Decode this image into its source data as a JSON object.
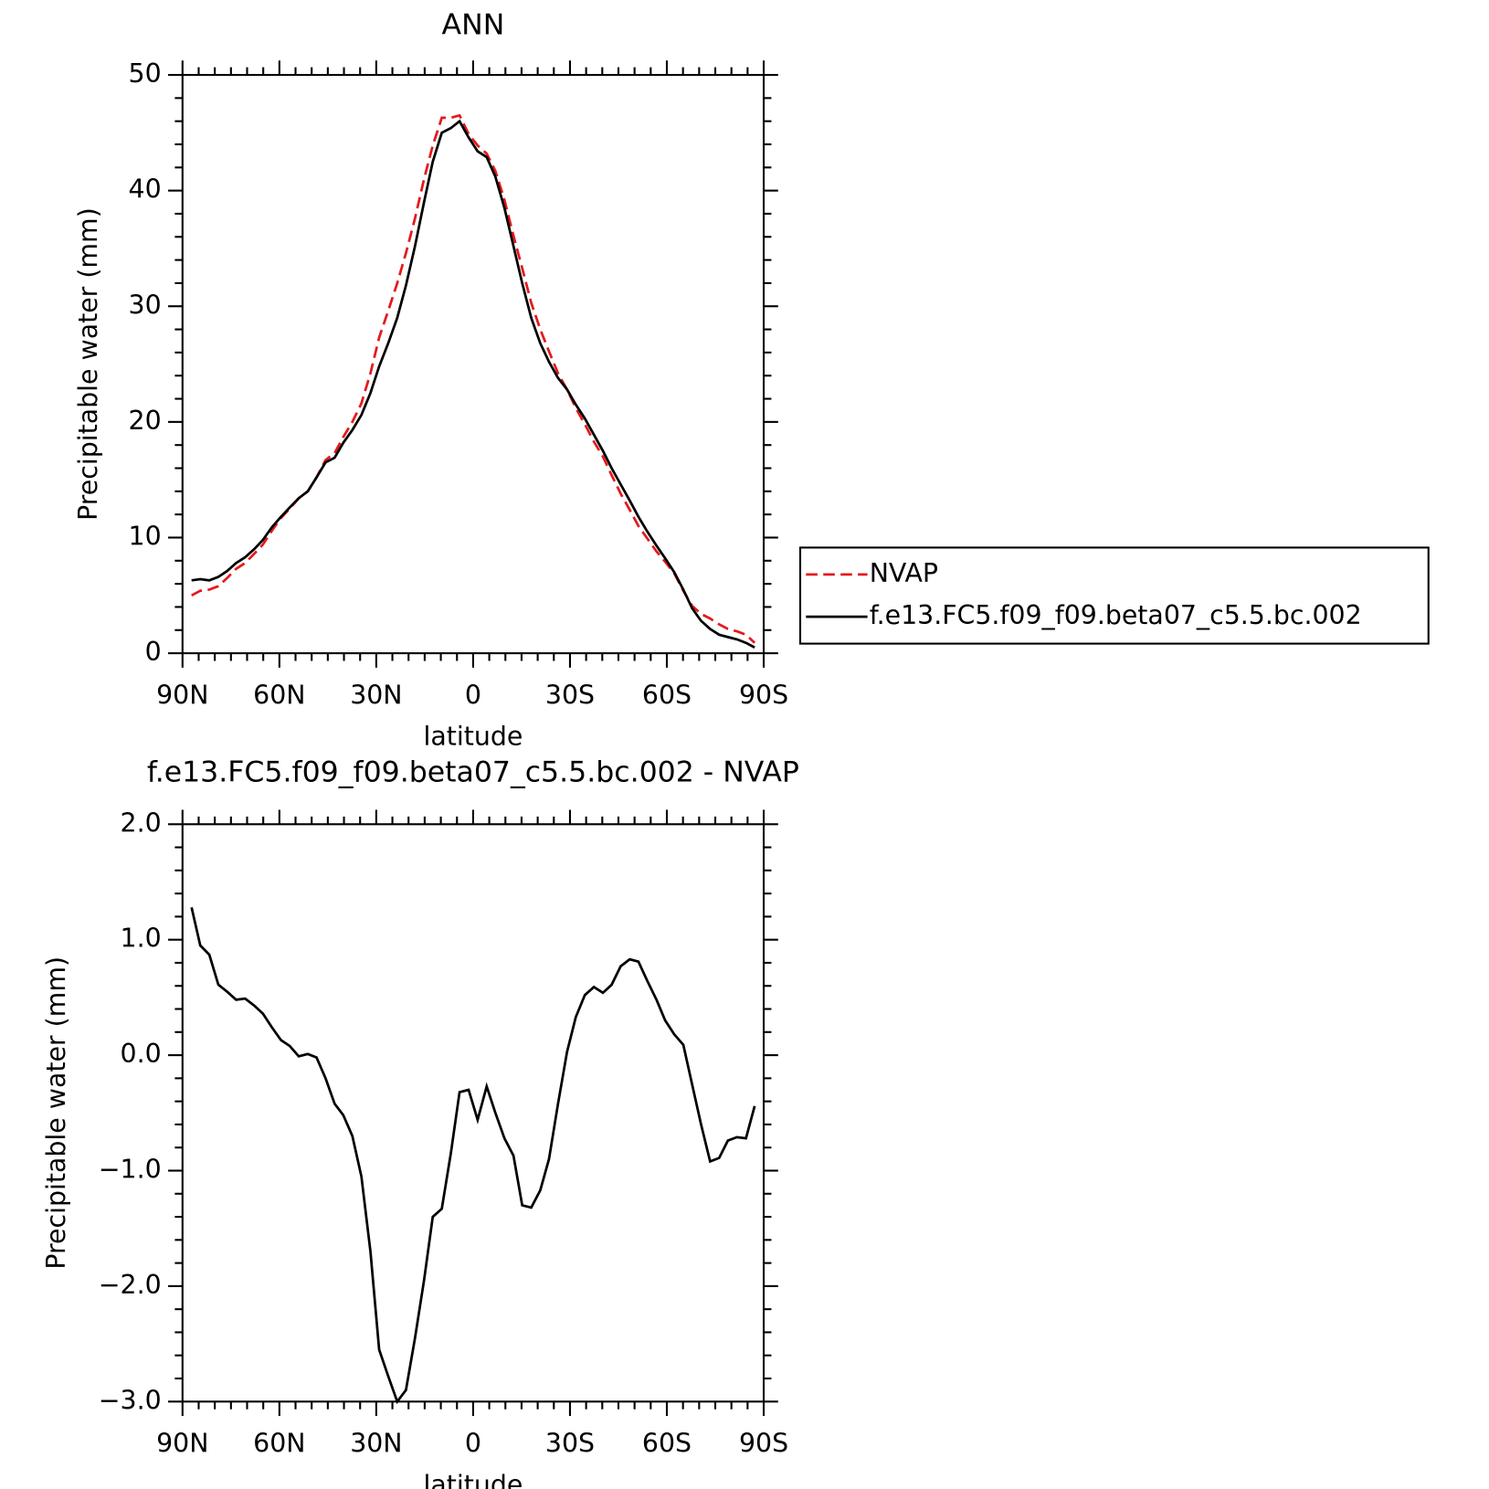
{
  "chart_data": [
    {
      "type": "line",
      "title": "ANN",
      "x_label": "latitude",
      "y_label": "Precipitable water (mm)",
      "x": [
        87.2,
        84.5,
        81.7,
        78.9,
        76.2,
        73.4,
        70.6,
        67.8,
        65.1,
        62.3,
        59.5,
        56.8,
        54.0,
        51.2,
        48.5,
        45.7,
        42.9,
        40.2,
        37.4,
        34.6,
        31.8,
        29.1,
        26.3,
        23.5,
        20.8,
        18.0,
        15.2,
        12.5,
        9.7,
        6.9,
        4.2,
        1.4,
        -1.4,
        -4.2,
        -6.9,
        -9.7,
        -12.5,
        -15.2,
        -18.0,
        -20.8,
        -23.5,
        -26.3,
        -29.1,
        -31.8,
        -34.6,
        -37.4,
        -40.2,
        -42.9,
        -45.7,
        -48.5,
        -51.2,
        -54.0,
        -56.8,
        -59.5,
        -62.3,
        -65.1,
        -67.8,
        -70.6,
        -73.4,
        -76.2,
        -78.9,
        -81.7,
        -84.5,
        -87.2
      ],
      "series": [
        {
          "name": "NVAP",
          "color": "#e41a1c",
          "style": "dashed",
          "values": [
            5.0,
            5.4,
            5.5,
            5.8,
            6.5,
            7.3,
            7.8,
            8.6,
            9.4,
            10.6,
            11.7,
            12.5,
            13.4,
            14.0,
            15.2,
            16.7,
            17.3,
            18.7,
            20.0,
            21.6,
            24.2,
            27.3,
            29.6,
            32.0,
            34.6,
            37.6,
            41.0,
            43.9,
            46.3,
            46.3,
            46.5,
            44.9,
            43.9,
            43.2,
            41.7,
            39.2,
            36.1,
            33.3,
            30.3,
            28.0,
            26.1,
            24.2,
            22.8,
            21.2,
            19.8,
            18.3,
            17.0,
            15.4,
            13.8,
            12.4,
            11.0,
            9.9,
            8.8,
            7.9,
            6.9,
            5.4,
            4.1,
            3.4,
            3.0,
            2.5,
            2.1,
            1.9,
            1.6,
            0.9
          ]
        },
        {
          "name": "f.e13.FC5.f09_f09.beta07_c5.5.bc.002",
          "color": "#000000",
          "style": "solid",
          "values": [
            6.3,
            6.4,
            6.3,
            6.6,
            7.1,
            7.8,
            8.3,
            9.0,
            9.8,
            10.9,
            11.8,
            12.6,
            13.4,
            14.0,
            15.2,
            16.5,
            16.9,
            18.2,
            19.3,
            20.6,
            22.5,
            24.8,
            26.8,
            29.0,
            31.8,
            35.2,
            39.0,
            42.5,
            45.0,
            45.4,
            46.0,
            44.6,
            43.4,
            42.9,
            41.2,
            38.5,
            35.2,
            32.0,
            29.0,
            26.8,
            25.2,
            23.8,
            22.8,
            21.5,
            20.3,
            18.9,
            17.5,
            16.0,
            14.6,
            13.2,
            11.8,
            10.5,
            9.3,
            8.2,
            7.0,
            5.5,
            3.9,
            2.8,
            2.1,
            1.6,
            1.4,
            1.2,
            0.9,
            0.5
          ]
        }
      ],
      "xlim": [
        90,
        -90
      ],
      "xticks": [
        {
          "value": 90,
          "label": "90N"
        },
        {
          "value": 60,
          "label": "60N"
        },
        {
          "value": 30,
          "label": "30N"
        },
        0,
        {
          "value": -30,
          "label": "30S"
        },
        {
          "value": -60,
          "label": "60S"
        },
        {
          "value": -90,
          "label": "90S"
        }
      ],
      "xminorticks": [
        85,
        80,
        75,
        70,
        65,
        55,
        50,
        45,
        40,
        35,
        25,
        20,
        15,
        10,
        5,
        -5,
        -10,
        -15,
        -20,
        -25,
        -35,
        -40,
        -45,
        -50,
        -55,
        -65,
        -70,
        -75,
        -80,
        -85
      ],
      "ylim": [
        0,
        50
      ],
      "yticks": [
        0,
        10,
        20,
        30,
        40,
        50
      ],
      "yminorticks": [
        2,
        4,
        6,
        8,
        12,
        14,
        16,
        18,
        22,
        24,
        26,
        28,
        32,
        34,
        36,
        38,
        42,
        44,
        46,
        48
      ],
      "legend": "right"
    },
    {
      "type": "line",
      "title": "f.e13.FC5.f09_f09.beta07_c5.5.bc.002 - NVAP",
      "x_label": "latitude",
      "y_label": "Precipitable water (mm)",
      "x": [
        87.2,
        84.5,
        81.7,
        78.9,
        76.2,
        73.4,
        70.6,
        67.8,
        65.1,
        62.3,
        59.5,
        56.8,
        54.0,
        51.2,
        48.5,
        45.7,
        42.9,
        40.2,
        37.4,
        34.6,
        31.8,
        29.1,
        26.3,
        23.5,
        20.8,
        18.0,
        15.2,
        12.5,
        9.7,
        6.9,
        4.2,
        1.4,
        -1.4,
        -4.2,
        -6.9,
        -9.7,
        -12.5,
        -15.2,
        -18.0,
        -20.8,
        -23.5,
        -26.3,
        -29.1,
        -31.8,
        -34.6,
        -37.4,
        -40.2,
        -42.9,
        -45.7,
        -48.5,
        -51.2,
        -54.0,
        -56.8,
        -59.5,
        -62.3,
        -65.1,
        -67.8,
        -70.6,
        -73.4,
        -76.2,
        -78.9,
        -81.7,
        -84.5,
        -87.2
      ],
      "values": [
        1.28,
        0.95,
        0.87,
        0.61,
        0.55,
        0.48,
        0.49,
        0.43,
        0.36,
        0.24,
        0.13,
        0.08,
        -0.01,
        0.01,
        -0.02,
        -0.2,
        -0.42,
        -0.52,
        -0.7,
        -1.05,
        -1.7,
        -2.55,
        -2.78,
        -3.0,
        -2.9,
        -2.45,
        -1.95,
        -1.4,
        -1.33,
        -0.85,
        -0.32,
        -0.3,
        -0.56,
        -0.27,
        -0.5,
        -0.72,
        -0.87,
        -1.3,
        -1.32,
        -1.17,
        -0.9,
        -0.42,
        0.03,
        0.33,
        0.52,
        0.59,
        0.54,
        0.61,
        0.77,
        0.83,
        0.81,
        0.64,
        0.48,
        0.3,
        0.18,
        0.09,
        -0.25,
        -0.6,
        -0.92,
        -0.89,
        -0.74,
        -0.71,
        -0.72,
        -0.44
      ],
      "color": "#000000",
      "xlim": [
        90,
        -90
      ],
      "xticks": [
        {
          "value": 90,
          "label": "90N"
        },
        {
          "value": 60,
          "label": "60N"
        },
        {
          "value": 30,
          "label": "30N"
        },
        0,
        {
          "value": -30,
          "label": "30S"
        },
        {
          "value": -60,
          "label": "60S"
        },
        {
          "value": -90,
          "label": "90S"
        }
      ],
      "xminorticks": [
        85,
        80,
        75,
        70,
        65,
        55,
        50,
        45,
        40,
        35,
        25,
        20,
        15,
        10,
        5,
        -5,
        -10,
        -15,
        -20,
        -25,
        -35,
        -40,
        -45,
        -50,
        -55,
        -65,
        -70,
        -75,
        -80,
        -85
      ],
      "ylim": [
        -3,
        2
      ],
      "yticks": [
        {
          "value": -3,
          "label": "−3.0"
        },
        {
          "value": -2,
          "label": "−2.0"
        },
        {
          "value": -1,
          "label": "−1.0"
        },
        {
          "value": 0,
          "label": "0.0"
        },
        {
          "value": 1,
          "label": "1.0"
        },
        {
          "value": 2,
          "label": "2.0"
        }
      ],
      "yminorticks": [
        1.8,
        1.6,
        1.4,
        1.2,
        0.8,
        0.6,
        0.4,
        0.2,
        -0.2,
        -0.4,
        -0.6,
        -0.8,
        -1.2,
        -1.4,
        -1.6,
        -1.8,
        -2.2,
        -2.4,
        -2.6,
        -2.8
      ]
    }
  ]
}
